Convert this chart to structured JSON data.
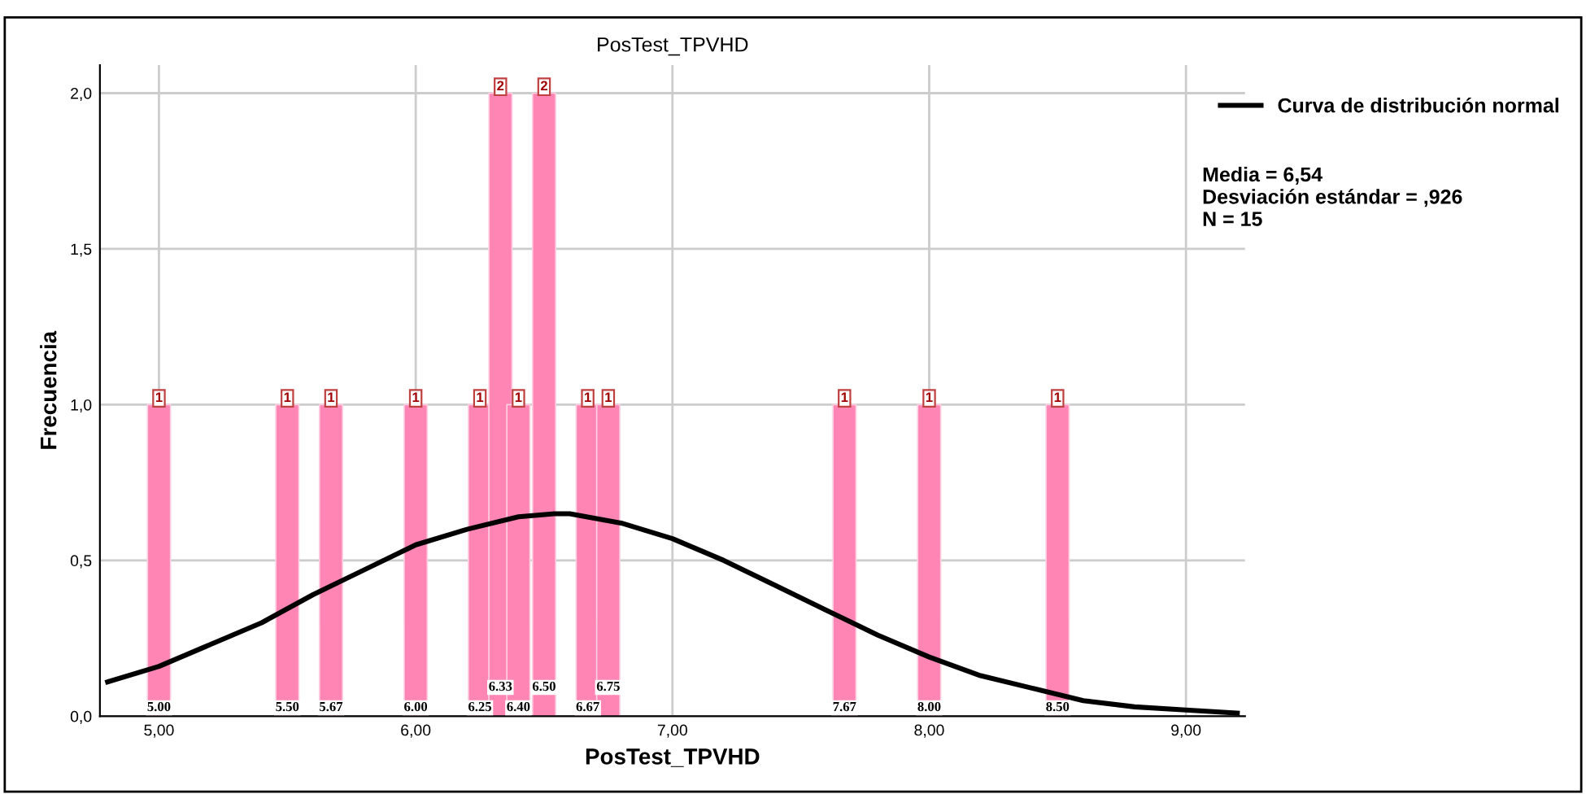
{
  "chart_data": {
    "type": "bar",
    "title": "PosTest_TPVHD",
    "xlabel": "PosTest_TPVHD",
    "ylabel": "Frecuencia",
    "series": [
      {
        "color": "#ff85b5",
        "x": [
          5.0,
          5.5,
          5.67,
          6.0,
          6.25,
          6.33,
          6.4,
          6.5,
          6.67,
          6.75,
          7.67,
          8.0,
          8.5
        ],
        "values": [
          1,
          1,
          1,
          1,
          1,
          2,
          1,
          2,
          1,
          1,
          1,
          1,
          1
        ],
        "value_labels": [
          "1",
          "1",
          "1",
          "1",
          "1",
          "2",
          "1",
          "2",
          "1",
          "1",
          "1",
          "1",
          "1"
        ]
      },
      {
        "type": "line",
        "name": "Curva de distribución normal",
        "color": "#000000",
        "x": [
          4.8,
          5.0,
          5.2,
          5.4,
          5.6,
          5.8,
          6.0,
          6.2,
          6.4,
          6.54,
          6.6,
          6.8,
          7.0,
          7.2,
          7.4,
          7.6,
          7.8,
          8.0,
          8.2,
          8.4,
          8.6,
          8.8,
          9.0,
          9.2
        ],
        "values": [
          0.11,
          0.16,
          0.23,
          0.3,
          0.39,
          0.47,
          0.55,
          0.6,
          0.64,
          0.65,
          0.65,
          0.62,
          0.57,
          0.5,
          0.42,
          0.34,
          0.26,
          0.19,
          0.13,
          0.09,
          0.05,
          0.03,
          0.02,
          0.01
        ]
      }
    ],
    "annotations": [
      "5.00",
      "5.50",
      "5.67",
      "6.00",
      "6.25",
      "6.33",
      "6.40",
      "6.50",
      "6.67",
      "6.75",
      "7.67",
      "8.00",
      "8.50",
      "Media = 6,54",
      "Desviación estándar = ,926",
      "N = 15"
    ],
    "xlim": [
      4.77,
      9.23
    ],
    "ylim": [
      0,
      2.09
    ],
    "xticks": [
      {
        "value": 5,
        "label": "5,00"
      },
      {
        "value": 6,
        "label": "6,00"
      },
      {
        "value": 7,
        "label": "7,00"
      },
      {
        "value": 8,
        "label": "8,00"
      },
      {
        "value": 9,
        "label": "9,00"
      }
    ],
    "yticks": [
      {
        "value": 0,
        "label": "0,0"
      },
      {
        "value": 0.5,
        "label": "0,5"
      },
      {
        "value": 1,
        "label": "1,0"
      },
      {
        "value": 1.5,
        "label": "1,5"
      },
      {
        "value": 2,
        "label": "2,0"
      }
    ],
    "grid": true,
    "legend": "top right",
    "line_style": "solid",
    "marker": "none"
  }
}
